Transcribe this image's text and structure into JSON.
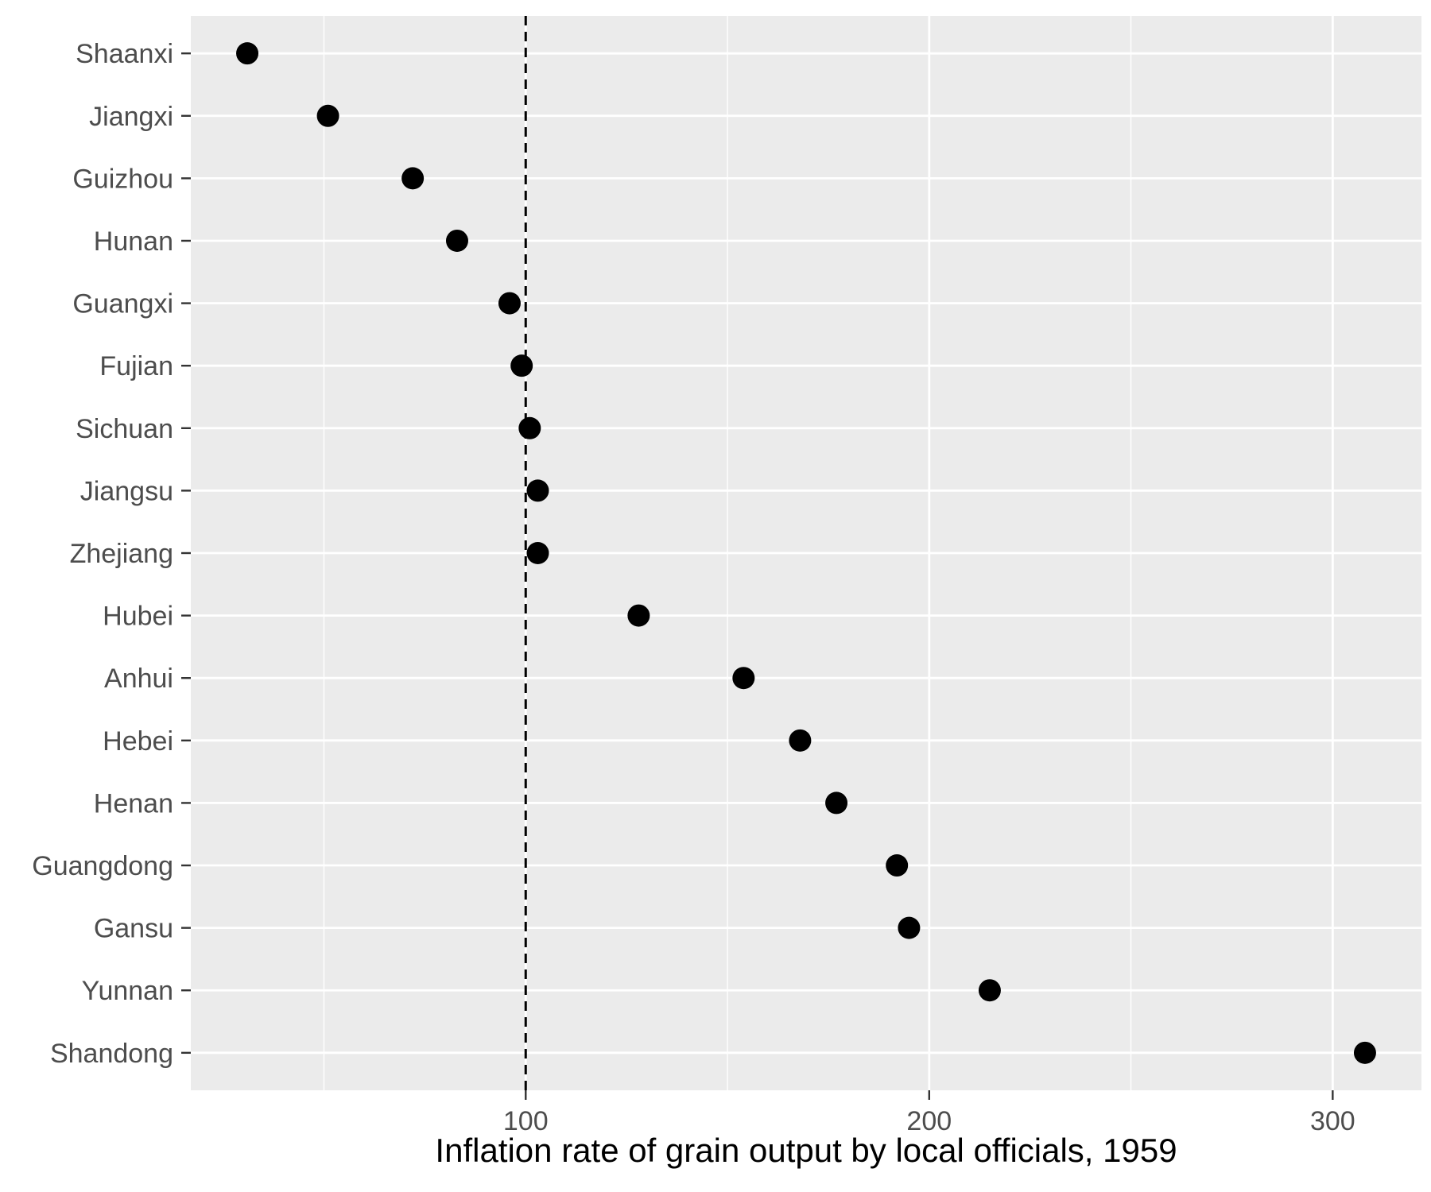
{
  "chart_data": {
    "type": "scatter",
    "title": "",
    "xlabel": "Inflation rate of grain output by local officials, 1959",
    "ylabel": "",
    "xlim": [
      17,
      322
    ],
    "x_ticks": [
      100,
      200,
      300
    ],
    "x_minor_ticks": [
      50,
      150,
      250
    ],
    "reference_line": {
      "x": 100,
      "style": "dashed"
    },
    "grid": true,
    "background": "#ebebeb",
    "grid_color": "#ffffff",
    "point_color": "#000000",
    "categories": [
      "Shaanxi",
      "Jiangxi",
      "Guizhou",
      "Hunan",
      "Guangxi",
      "Fujian",
      "Sichuan",
      "Jiangsu",
      "Zhejiang",
      "Hubei",
      "Anhui",
      "Hebei",
      "Henan",
      "Guangdong",
      "Gansu",
      "Yunnan",
      "Shandong"
    ],
    "values": [
      31,
      51,
      72,
      83,
      96,
      99,
      101,
      103,
      103,
      128,
      154,
      168,
      177,
      192,
      195,
      215,
      308
    ]
  }
}
